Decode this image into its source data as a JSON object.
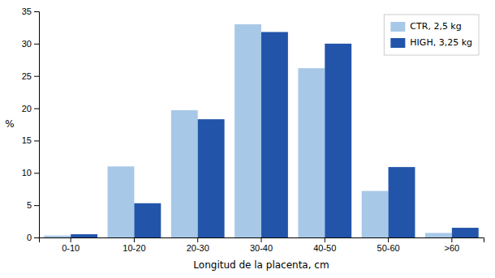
{
  "chart_data": {
    "type": "bar",
    "xlabel": "Longitud de la placenta, cm",
    "ylabel": "%",
    "categories": [
      "0-10",
      "10-20",
      "20-30",
      "30-40",
      "40-50",
      "50-60",
      ">60"
    ],
    "series": [
      {
        "name": "CTR, 2,5 kg",
        "color": "#a8c8e8",
        "values": [
          0.3,
          11.0,
          19.7,
          33.0,
          26.2,
          7.2,
          0.7
        ]
      },
      {
        "name": "HIGH, 3,25 kg",
        "color": "#2255aa",
        "values": [
          0.5,
          5.3,
          18.3,
          31.8,
          30.0,
          10.9,
          1.5
        ]
      }
    ],
    "ylim": [
      0,
      35
    ],
    "yticks": [
      0,
      5,
      10,
      15,
      20,
      25,
      30,
      35
    ],
    "grid": false,
    "legend": "upper right"
  }
}
